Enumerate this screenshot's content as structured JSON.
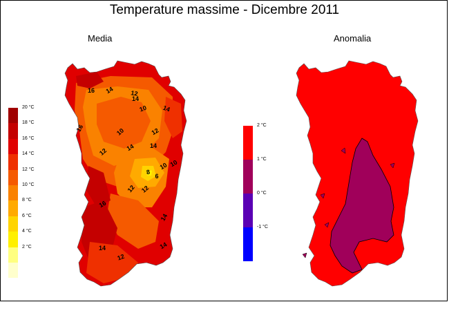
{
  "title": "Temperature massime - Dicembre 2011",
  "panels": {
    "left": {
      "subtitle": "Media"
    },
    "right": {
      "subtitle": "Anomalia"
    }
  },
  "legend_media": {
    "entries": [
      {
        "label": "20 °C",
        "color": "#a00000"
      },
      {
        "label": "18 °C",
        "color": "#c40000"
      },
      {
        "label": "16 °C",
        "color": "#e00000"
      },
      {
        "label": "14 °C",
        "color": "#ef3000"
      },
      {
        "label": "12 °C",
        "color": "#f55a00"
      },
      {
        "label": "10 °C",
        "color": "#fa8200"
      },
      {
        "label": "8 °C",
        "color": "#ffaa00"
      },
      {
        "label": "6 °C",
        "color": "#ffd400"
      },
      {
        "label": "4 °C",
        "color": "#fff000"
      },
      {
        "label": "2 °C",
        "color": "#ffff80"
      },
      {
        "label": "",
        "color": "#ffffcc"
      }
    ]
  },
  "legend_anomalia": {
    "entries": [
      {
        "label": "2 °C",
        "color": "#ff0000"
      },
      {
        "label": "1 °C",
        "color": "#a0005a"
      },
      {
        "label": "0 °C",
        "color": "#5a00b4"
      },
      {
        "label": "-1 °C",
        "color": "#0000ff"
      }
    ]
  },
  "contour_labels": [
    "14",
    "12",
    "14",
    "10",
    "14",
    "16",
    "10",
    "12",
    "12",
    "14",
    "8",
    "6",
    "10",
    "12",
    "12",
    "10",
    "16",
    "14",
    "14",
    "16",
    "14",
    "12",
    "14"
  ]
}
